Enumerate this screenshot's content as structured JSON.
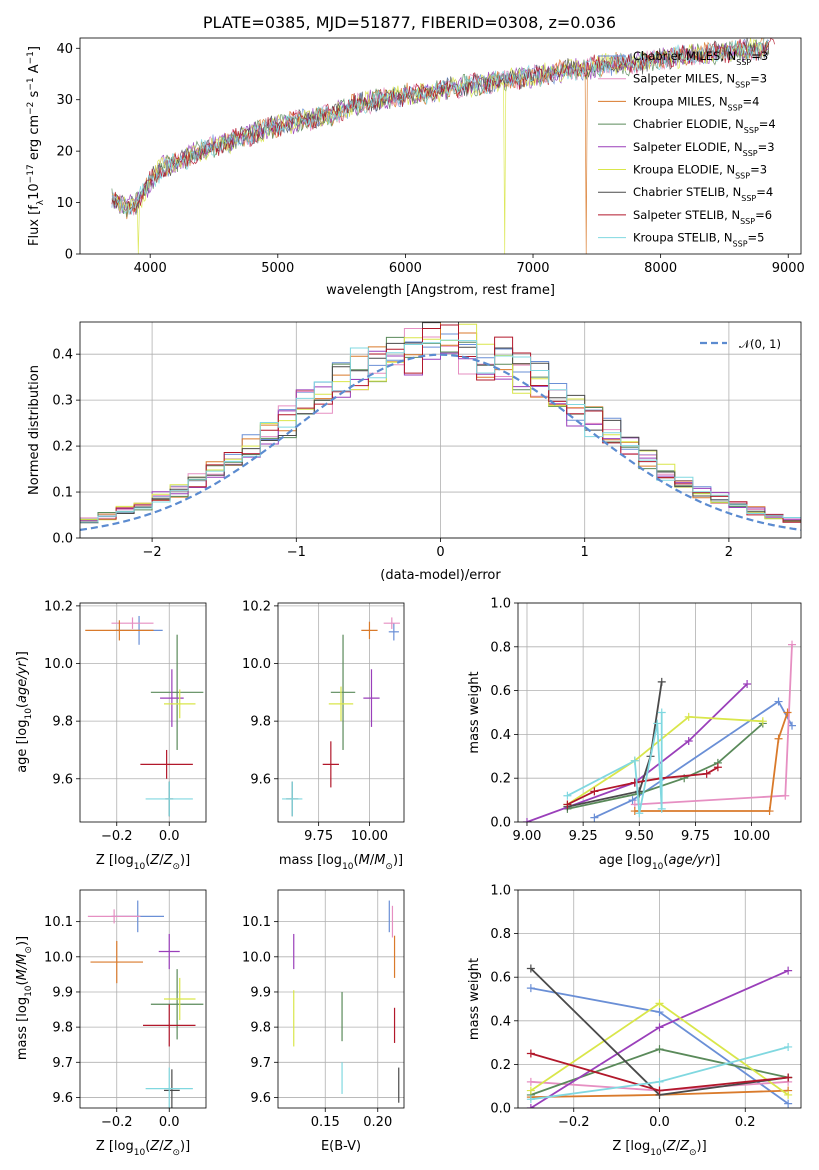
{
  "title": "PLATE=0385, MJD=51877, FIBERID=0308, z=0.036",
  "models": [
    {
      "name": "Chabrier MILES",
      "nssp": "3",
      "color": "#6a8fd6"
    },
    {
      "name": "Salpeter MILES",
      "nssp": "3",
      "color": "#e68fc2"
    },
    {
      "name": "Kroupa MILES",
      "nssp": "4",
      "color": "#d97a2b"
    },
    {
      "name": "Chabrier ELODIE",
      "nssp": "4",
      "color": "#5a8a5a"
    },
    {
      "name": "Salpeter ELODIE",
      "nssp": "3",
      "color": "#9a3fba"
    },
    {
      "name": "Kroupa ELODIE",
      "nssp": "3",
      "color": "#d9e64a"
    },
    {
      "name": "Chabrier STELIB",
      "nssp": "4",
      "color": "#4a4a4a"
    },
    {
      "name": "Salpeter STELIB",
      "nssp": "6",
      "color": "#b2182b"
    },
    {
      "name": "Kroupa STELIB",
      "nssp": "5",
      "color": "#80d8e0"
    }
  ],
  "chart_data": [
    {
      "id": "spectrum",
      "type": "line",
      "xlabel": "wavelength [Angstrom, rest frame]",
      "ylabel_main": "Flux [f",
      "ylabel_sub": "λ",
      "ylabel_tail": "10",
      "ylabel_sup1": "−17",
      "ylabel_mid": " erg cm",
      "ylabel_sup2": "−2",
      "ylabel_mid2": " s",
      "ylabel_sup3": "−1",
      "ylabel_end": " A",
      "ylabel_sup4": "−1",
      "ylabel_close": "]",
      "xlim": [
        3450,
        9100
      ],
      "ylim": [
        0,
        42
      ],
      "xticks": [
        4000,
        5000,
        6000,
        7000,
        8000,
        9000
      ],
      "yticks": [
        0,
        10,
        20,
        30,
        40
      ],
      "continuum": [
        [
          3700,
          11
        ],
        [
          3800,
          9
        ],
        [
          3900,
          10
        ],
        [
          4000,
          14
        ],
        [
          4100,
          17
        ],
        [
          4200,
          17.5
        ],
        [
          4300,
          19
        ],
        [
          4400,
          20
        ],
        [
          4500,
          21
        ],
        [
          4700,
          22.5
        ],
        [
          5000,
          25
        ],
        [
          5200,
          26
        ],
        [
          5400,
          27
        ],
        [
          5600,
          29
        ],
        [
          5800,
          30
        ],
        [
          6000,
          31
        ],
        [
          6200,
          31.5
        ],
        [
          6400,
          32.5
        ],
        [
          6600,
          33
        ],
        [
          6800,
          34
        ],
        [
          7000,
          34.5
        ],
        [
          7200,
          35.5
        ],
        [
          7400,
          36
        ],
        [
          7600,
          37
        ],
        [
          7800,
          37
        ],
        [
          8000,
          38
        ],
        [
          8200,
          38.5
        ],
        [
          8400,
          39
        ],
        [
          8600,
          39.5
        ],
        [
          8800,
          40
        ]
      ],
      "dropouts": [
        {
          "x": 6780,
          "model": 5
        },
        {
          "x": 7420,
          "model": 2
        },
        {
          "x": 3910,
          "model": 5
        }
      ]
    },
    {
      "id": "residuals",
      "type": "step",
      "xlabel": "(data-model)/error",
      "ylabel": "Normed distribution",
      "xlim": [
        -2.5,
        2.5
      ],
      "ylim": [
        0,
        0.47
      ],
      "xticks": [
        -2,
        -1,
        0,
        1,
        2
      ],
      "yticks": [
        0.0,
        0.1,
        0.2,
        0.3,
        0.4
      ],
      "legend": "𝒩(0, 1)",
      "gaussian": {
        "mu": 0,
        "sigma": 1
      }
    },
    {
      "id": "age_vs_Z",
      "type": "errorbar",
      "xlabel_pre": "Z [log",
      "xlabel_sub": "10",
      "xlabel_post": "(Z/Z",
      "xlabel_sun": "⊙",
      "xlabel_end": ")]",
      "ylabel": "age  [log₁₀(age/yr)]",
      "xlim": [
        -0.34,
        0.14
      ],
      "ylim": [
        9.45,
        10.21
      ],
      "xticks": [
        -0.2,
        0.0
      ],
      "yticks": [
        9.6,
        9.8,
        10.0,
        10.2
      ],
      "points": [
        {
          "model": 0,
          "x": -0.115,
          "y": 10.115,
          "xerr": 0.09,
          "yerr": 0.05
        },
        {
          "model": 1,
          "x": -0.14,
          "y": 10.14,
          "xerr": 0.08,
          "yerr": 0.02
        },
        {
          "model": 2,
          "x": -0.19,
          "y": 10.115,
          "xerr": 0.13,
          "yerr": 0.035
        },
        {
          "model": 3,
          "x": 0.03,
          "y": 9.9,
          "xerr": 0.1,
          "yerr": 0.2
        },
        {
          "model": 4,
          "x": 0.01,
          "y": 9.88,
          "xerr": 0.045,
          "yerr": 0.1
        },
        {
          "model": 5,
          "x": 0.04,
          "y": 9.86,
          "xerr": 0.06,
          "yerr": 0.05
        },
        {
          "model": 6,
          "x": 0.0,
          "y": 9.53,
          "xerr": 0.015,
          "yerr": 0.06
        },
        {
          "model": 7,
          "x": -0.01,
          "y": 9.65,
          "xerr": 0.1,
          "yerr": 0.05
        },
        {
          "model": 8,
          "x": 0.0,
          "y": 9.53,
          "xerr": 0.09,
          "yerr": 0.06
        }
      ]
    },
    {
      "id": "age_vs_mass",
      "type": "errorbar",
      "xlabel_pre": "mass [log",
      "xlabel_sub": "10",
      "xlabel_post": "(M/M",
      "xlabel_sun": "⊙",
      "xlabel_end": ")]",
      "ylabel": "",
      "xlim": [
        9.55,
        10.17
      ],
      "ylim": [
        9.45,
        10.21
      ],
      "xticks": [
        9.75,
        10.0
      ],
      "yticks": [
        9.6,
        9.8,
        10.0,
        10.2
      ],
      "points": [
        {
          "model": 0,
          "x": 10.12,
          "y": 10.11,
          "xerr": 0.025,
          "yerr": 0.03
        },
        {
          "model": 1,
          "x": 10.11,
          "y": 10.14,
          "xerr": 0.04,
          "yerr": 0.02
        },
        {
          "model": 2,
          "x": 10.0,
          "y": 10.115,
          "xerr": 0.04,
          "yerr": 0.03
        },
        {
          "model": 3,
          "x": 9.87,
          "y": 9.9,
          "xerr": 0.06,
          "yerr": 0.2
        },
        {
          "model": 4,
          "x": 10.01,
          "y": 9.88,
          "xerr": 0.04,
          "yerr": 0.1
        },
        {
          "model": 5,
          "x": 9.86,
          "y": 9.86,
          "xerr": 0.06,
          "yerr": 0.06
        },
        {
          "model": 6,
          "x": 9.62,
          "y": 9.53,
          "xerr": 0.03,
          "yerr": 0.06
        },
        {
          "model": 7,
          "x": 9.81,
          "y": 9.65,
          "xerr": 0.04,
          "yerr": 0.08
        },
        {
          "model": 8,
          "x": 9.62,
          "y": 9.53,
          "xerr": 0.05,
          "yerr": 0.06
        }
      ]
    },
    {
      "id": "weight_vs_age",
      "type": "line",
      "xlabel_pre": "age  [log",
      "xlabel_sub": "10",
      "xlabel_post": "(age/yr)]",
      "ylabel": "mass weight",
      "xlim": [
        8.96,
        10.22
      ],
      "ylim": [
        0,
        1.0
      ],
      "xticks": [
        9.0,
        9.25,
        9.5,
        9.75,
        10.0
      ],
      "yticks": [
        0.0,
        0.2,
        0.4,
        0.6,
        0.8,
        1.0
      ],
      "series": [
        {
          "model": 0,
          "x": [
            9.3,
            9.47,
            10.12,
            10.18
          ],
          "y": [
            0.02,
            0.1,
            0.55,
            0.44
          ]
        },
        {
          "model": 1,
          "x": [
            9.48,
            10.15,
            10.18
          ],
          "y": [
            0.08,
            0.12,
            0.81
          ]
        },
        {
          "model": 2,
          "x": [
            9.48,
            10.08,
            10.12,
            10.16
          ],
          "y": [
            0.05,
            0.05,
            0.38,
            0.5
          ]
        },
        {
          "model": 3,
          "x": [
            9.18,
            9.5,
            9.7,
            9.85,
            10.05
          ],
          "y": [
            0.06,
            0.13,
            0.2,
            0.27,
            0.45
          ]
        },
        {
          "model": 4,
          "x": [
            9.0,
            9.48,
            9.72,
            9.98
          ],
          "y": [
            0.0,
            0.18,
            0.37,
            0.63
          ]
        },
        {
          "model": 5,
          "x": [
            9.18,
            9.48,
            9.72,
            10.05
          ],
          "y": [
            0.08,
            0.28,
            0.48,
            0.46
          ]
        },
        {
          "model": 6,
          "x": [
            9.18,
            9.5,
            9.55,
            9.6
          ],
          "y": [
            0.07,
            0.14,
            0.3,
            0.64
          ]
        },
        {
          "model": 7,
          "x": [
            9.18,
            9.3,
            9.48,
            9.6,
            9.8,
            9.85
          ],
          "y": [
            0.08,
            0.14,
            0.18,
            0.2,
            0.22,
            0.25
          ]
        },
        {
          "model": 8,
          "x": [
            9.18,
            9.48,
            9.5,
            9.58,
            9.6,
            9.6
          ],
          "y": [
            0.12,
            0.28,
            0.04,
            0.45,
            0.06,
            0.5
          ]
        }
      ]
    },
    {
      "id": "mass_vs_Z",
      "type": "errorbar",
      "xlabel_pre": "Z [log",
      "xlabel_sub": "10",
      "xlabel_post": "(Z/Z",
      "xlabel_sun": "⊙",
      "xlabel_end": ")]",
      "ylabel": "mass [log₁₀(M/M☉)]",
      "xlim": [
        -0.34,
        0.14
      ],
      "ylim": [
        9.57,
        10.19
      ],
      "xticks": [
        -0.2,
        0.0
      ],
      "yticks": [
        9.6,
        9.7,
        9.8,
        9.9,
        10.0,
        10.1
      ],
      "points": [
        {
          "model": 0,
          "x": -0.12,
          "y": 10.115,
          "xerr": 0.1,
          "yerr": 0.045
        },
        {
          "model": 1,
          "x": -0.21,
          "y": 10.115,
          "xerr": 0.1,
          "yerr": 0.02
        },
        {
          "model": 2,
          "x": -0.2,
          "y": 9.985,
          "xerr": 0.1,
          "yerr": 0.06
        },
        {
          "model": 3,
          "x": 0.03,
          "y": 9.865,
          "xerr": 0.1,
          "yerr": 0.1
        },
        {
          "model": 4,
          "x": 0.0,
          "y": 10.015,
          "xerr": 0.04,
          "yerr": 0.05
        },
        {
          "model": 5,
          "x": 0.04,
          "y": 9.88,
          "xerr": 0.06,
          "yerr": 0.06
        },
        {
          "model": 6,
          "x": 0.01,
          "y": 9.62,
          "xerr": 0.03,
          "yerr": 0.06
        },
        {
          "model": 7,
          "x": 0.0,
          "y": 9.805,
          "xerr": 0.1,
          "yerr": 0.06
        },
        {
          "model": 8,
          "x": 0.0,
          "y": 9.625,
          "xerr": 0.09,
          "yerr": 0.06
        }
      ]
    },
    {
      "id": "mass_vs_ebv",
      "type": "errorbar",
      "xlabel": "E(B-V)",
      "ylabel": "",
      "xlim": [
        0.105,
        0.225
      ],
      "ylim": [
        9.57,
        10.19
      ],
      "xticks": [
        0.15,
        0.2
      ],
      "yticks": [
        9.6,
        9.7,
        9.8,
        9.9,
        10.0,
        10.1
      ],
      "points": [
        {
          "model": 0,
          "x": 0.211,
          "y": 10.115,
          "xerr": 0,
          "yerr": 0.045
        },
        {
          "model": 1,
          "x": 0.214,
          "y": 10.1,
          "xerr": 0,
          "yerr": 0.045
        },
        {
          "model": 2,
          "x": 0.216,
          "y": 10.0,
          "xerr": 0,
          "yerr": 0.06
        },
        {
          "model": 3,
          "x": 0.166,
          "y": 9.83,
          "xerr": 0,
          "yerr": 0.07
        },
        {
          "model": 4,
          "x": 0.12,
          "y": 10.015,
          "xerr": 0,
          "yerr": 0.05
        },
        {
          "model": 5,
          "x": 0.12,
          "y": 9.825,
          "xerr": 0,
          "yerr": 0.08
        },
        {
          "model": 6,
          "x": 0.22,
          "y": 9.635,
          "xerr": 0,
          "yerr": 0.05
        },
        {
          "model": 7,
          "x": 0.216,
          "y": 9.805,
          "xerr": 0,
          "yerr": 0.05
        },
        {
          "model": 8,
          "x": 0.166,
          "y": 9.655,
          "xerr": 0,
          "yerr": 0.045
        }
      ]
    },
    {
      "id": "weight_vs_Z",
      "type": "line",
      "xlabel_pre": "Z [log",
      "xlabel_sub": "10",
      "xlabel_post": "(Z/Z",
      "xlabel_sun": "⊙",
      "xlabel_end": ")]",
      "ylabel": "mass weight",
      "xlim": [
        -0.33,
        0.33
      ],
      "ylim": [
        0,
        1.0
      ],
      "xticks": [
        -0.2,
        0.0,
        0.2
      ],
      "yticks": [
        0.0,
        0.2,
        0.4,
        0.6,
        0.8,
        1.0
      ],
      "series": [
        {
          "model": 0,
          "x": [
            -0.3,
            0.0,
            0.3
          ],
          "y": [
            0.55,
            0.44,
            0.02
          ]
        },
        {
          "model": 1,
          "x": [
            -0.3,
            0.0,
            0.3
          ],
          "y": [
            0.12,
            0.08,
            0.12
          ]
        },
        {
          "model": 2,
          "x": [
            -0.3,
            0.0,
            0.3
          ],
          "y": [
            0.05,
            0.06,
            0.08
          ]
        },
        {
          "model": 3,
          "x": [
            -0.3,
            0.0,
            0.3
          ],
          "y": [
            0.06,
            0.27,
            0.14
          ]
        },
        {
          "model": 4,
          "x": [
            -0.3,
            0.0,
            0.3
          ],
          "y": [
            0.0,
            0.37,
            0.63
          ]
        },
        {
          "model": 5,
          "x": [
            -0.3,
            0.0,
            0.3
          ],
          "y": [
            0.08,
            0.48,
            0.06
          ]
        },
        {
          "model": 6,
          "x": [
            -0.3,
            0.0,
            0.3
          ],
          "y": [
            0.64,
            0.06,
            0.14
          ]
        },
        {
          "model": 7,
          "x": [
            -0.3,
            0.0,
            0.3
          ],
          "y": [
            0.25,
            0.08,
            0.14
          ]
        },
        {
          "model": 8,
          "x": [
            -0.3,
            0.0,
            0.3
          ],
          "y": [
            0.04,
            0.12,
            0.28
          ]
        }
      ]
    }
  ]
}
